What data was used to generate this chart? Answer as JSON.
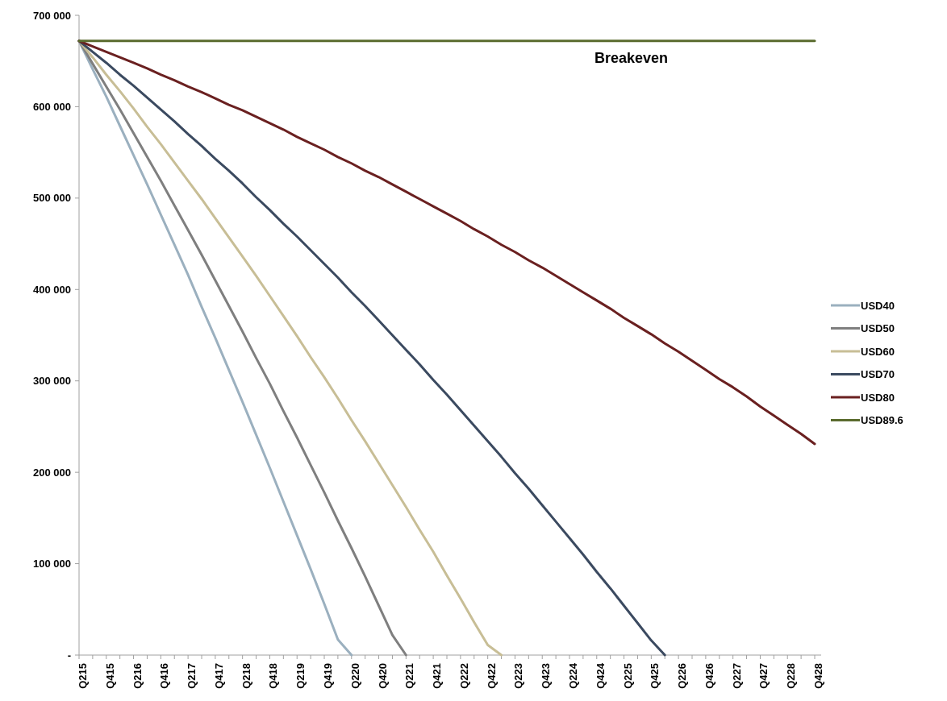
{
  "chart_data": {
    "type": "line",
    "categories": [
      "Q215",
      null,
      "Q415",
      null,
      "Q216",
      null,
      "Q416",
      null,
      "Q217",
      null,
      "Q417",
      null,
      "Q218",
      null,
      "Q418",
      null,
      "Q219",
      null,
      "Q419",
      null,
      "Q220",
      null,
      "Q420",
      null,
      "Q221",
      null,
      "Q421",
      null,
      "Q222",
      null,
      "Q422",
      null,
      "Q223",
      null,
      "Q423",
      null,
      "Q224",
      null,
      "Q424",
      null,
      "Q225",
      null,
      "Q425",
      null,
      "Q226",
      null,
      "Q426",
      null,
      "Q227",
      null,
      "Q427",
      null,
      "Q228",
      null,
      "Q428"
    ],
    "ylim": [
      0,
      700000
    ],
    "yticks": [
      {
        "value": 0,
        "label": "-"
      },
      {
        "value": 100000,
        "label": "100 000"
      },
      {
        "value": 200000,
        "label": "200 000"
      },
      {
        "value": 300000,
        "label": "300 000"
      },
      {
        "value": 400000,
        "label": "400 000"
      },
      {
        "value": 500000,
        "label": "500 000"
      },
      {
        "value": 600000,
        "label": "600 000"
      },
      {
        "value": 700000,
        "label": "700 000"
      }
    ],
    "legend": "right",
    "annotations": [
      {
        "text": "Breakeven",
        "x": "Q225",
        "y": 672000
      }
    ],
    "series": [
      {
        "name": "USD40",
        "color": "#9bb0bf",
        "values": [
          672000,
          641000,
          611000,
          579000,
          547000,
          515000,
          482000,
          449000,
          416000,
          381000,
          347000,
          312000,
          277000,
          241000,
          205000,
          168000,
          131000,
          94000,
          56000,
          17000,
          0,
          null,
          null,
          null,
          null,
          null,
          null,
          null,
          null,
          null,
          null,
          null,
          null,
          null,
          null,
          null,
          null,
          null,
          null,
          null,
          null,
          null,
          null,
          null,
          null,
          null,
          null,
          null,
          null,
          null,
          null,
          null,
          null,
          null,
          null
        ]
      },
      {
        "name": "USD50",
        "color": "#7f7f7f",
        "values": [
          672000,
          647000,
          622000,
          597000,
          571000,
          545000,
          519000,
          492000,
          465000,
          438000,
          410000,
          382000,
          354000,
          325000,
          297000,
          267000,
          238000,
          208000,
          178000,
          147000,
          117000,
          86000,
          54000,
          22000,
          0,
          null,
          null,
          null,
          null,
          null,
          null,
          null,
          null,
          null,
          null,
          null,
          null,
          null,
          null,
          null,
          null,
          null,
          null,
          null,
          null,
          null,
          null,
          null,
          null,
          null,
          null,
          null,
          null,
          null,
          null
        ]
      },
      {
        "name": "USD60",
        "color": "#c8be96",
        "values": [
          672000,
          654000,
          635000,
          617000,
          598000,
          578000,
          559000,
          539000,
          519000,
          499000,
          478000,
          457000,
          436000,
          415000,
          393000,
          371000,
          349000,
          326000,
          304000,
          281000,
          257000,
          234000,
          210000,
          186000,
          162000,
          137000,
          113000,
          87000,
          62000,
          36000,
          11000,
          0,
          null,
          null,
          null,
          null,
          null,
          null,
          null,
          null,
          null,
          null,
          null,
          null,
          null,
          null,
          null,
          null,
          null,
          null,
          null,
          null,
          null,
          null,
          null
        ]
      },
      {
        "name": "USD70",
        "color": "#3b4a60",
        "values": [
          672000,
          660000,
          648000,
          635000,
          623000,
          610000,
          597000,
          584000,
          570000,
          557000,
          543000,
          530000,
          516000,
          501000,
          487000,
          472000,
          458000,
          443000,
          428000,
          413000,
          397000,
          382000,
          366000,
          350000,
          334000,
          318000,
          301000,
          285000,
          268000,
          251000,
          234000,
          217000,
          199000,
          182000,
          164000,
          146000,
          128000,
          110000,
          91000,
          73000,
          54000,
          35000,
          16000,
          0,
          null,
          null,
          null,
          null,
          null,
          null,
          null,
          null,
          null,
          null,
          null
        ]
      },
      {
        "name": "USD80",
        "color": "#6a2020",
        "values": [
          672000,
          666000,
          660000,
          654000,
          648000,
          642000,
          635000,
          629000,
          622000,
          616000,
          609000,
          602000,
          596000,
          589000,
          582000,
          575000,
          567000,
          560000,
          553000,
          545000,
          538000,
          530000,
          523000,
          515000,
          507000,
          499000,
          491000,
          483000,
          475000,
          466000,
          458000,
          449000,
          441000,
          432000,
          424000,
          415000,
          406000,
          397000,
          388000,
          379000,
          369000,
          360000,
          351000,
          341000,
          332000,
          322000,
          312000,
          302000,
          293000,
          283000,
          272000,
          262000,
          252000,
          242000,
          231000
        ]
      },
      {
        "name": "USD89.6",
        "color": "#5a6b2e",
        "values": [
          672000,
          672000,
          672000,
          672000,
          672000,
          672000,
          672000,
          672000,
          672000,
          672000,
          672000,
          672000,
          672000,
          672000,
          672000,
          672000,
          672000,
          672000,
          672000,
          672000,
          672000,
          672000,
          672000,
          672000,
          672000,
          672000,
          672000,
          672000,
          672000,
          672000,
          672000,
          672000,
          672000,
          672000,
          672000,
          672000,
          672000,
          672000,
          672000,
          672000,
          672000,
          672000,
          672000,
          672000,
          672000,
          672000,
          672000,
          672000,
          672000,
          672000,
          672000,
          672000,
          672000,
          672000,
          672000
        ]
      }
    ]
  }
}
